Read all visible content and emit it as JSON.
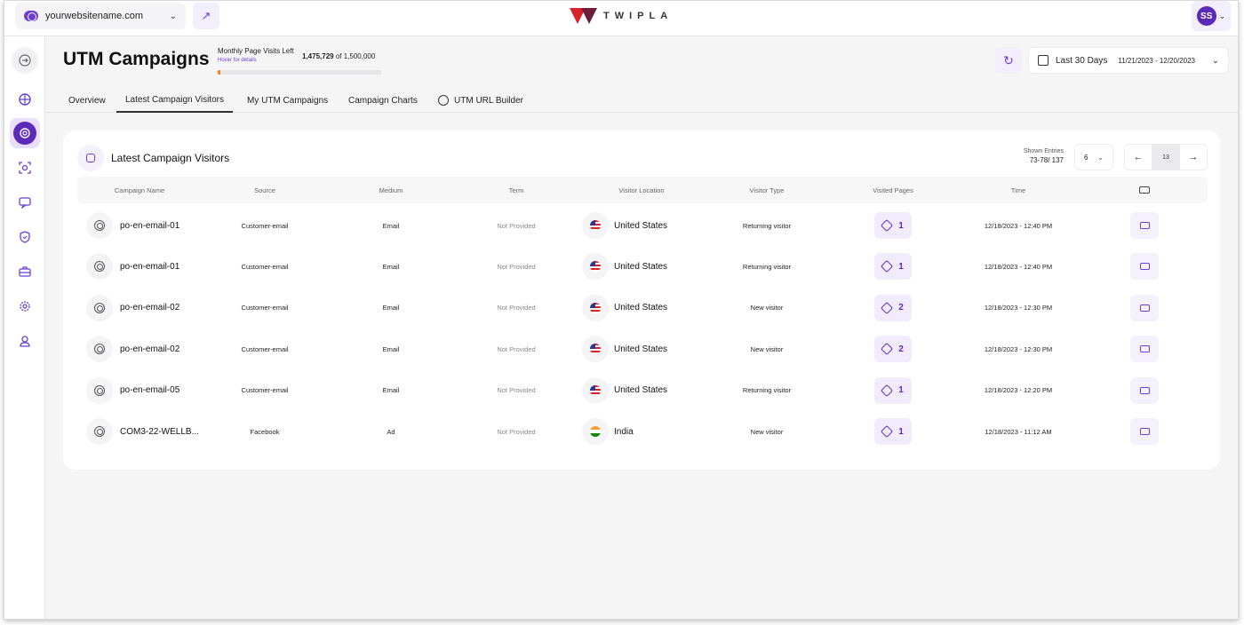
{
  "topbar": {
    "site": "yourwebsitename.com",
    "logo_text": "TWIPLA",
    "user_initials": "SS"
  },
  "header": {
    "title": "UTM Campaigns",
    "visits_label": "Monthly Page Visits Left",
    "visits_hover": "Hover for details",
    "visits_left": "1,475,729",
    "visits_of": "of 1,500,000",
    "visits_fraction_used": 0.016,
    "date_label": "Last 30 Days",
    "date_range": "11/21/2023 - 12/20/2023"
  },
  "tabs": [
    {
      "label": "Overview"
    },
    {
      "label": "Latest Campaign Visitors"
    },
    {
      "label": "My UTM Campaigns"
    },
    {
      "label": "Campaign Charts"
    },
    {
      "label": "UTM URL Builder"
    }
  ],
  "card": {
    "title": "Latest Campaign Visitors",
    "entries_label": "Shown Entries",
    "entries_value": "73-78/ 137",
    "per_page": "6",
    "page": "13"
  },
  "columns": {
    "campaign": "Campaign Name",
    "source": "Source",
    "medium": "Medium",
    "term": "Term",
    "location": "Visitor Location",
    "type": "Visitor Type",
    "pages": "Visited Pages",
    "time": "Time"
  },
  "rows": [
    {
      "campaign": "po-en-email-01",
      "source": "Customer-email",
      "medium": "Email",
      "term": "Not Provided",
      "country": "United States",
      "flag": "us",
      "type": "Returning visitor",
      "pages": "1",
      "time": "12/18/2023 - 12:40 PM"
    },
    {
      "campaign": "po-en-email-01",
      "source": "Customer-email",
      "medium": "Email",
      "term": "Not Provided",
      "country": "United States",
      "flag": "us",
      "type": "Returning visitor",
      "pages": "1",
      "time": "12/18/2023 - 12:40 PM"
    },
    {
      "campaign": "po-en-email-02",
      "source": "Customer-email",
      "medium": "Email",
      "term": "Not Provided",
      "country": "United States",
      "flag": "us",
      "type": "New visitor",
      "pages": "2",
      "time": "12/18/2023 - 12:30 PM"
    },
    {
      "campaign": "po-en-email-02",
      "source": "Customer-email",
      "medium": "Email",
      "term": "Not Provided",
      "country": "United States",
      "flag": "us",
      "type": "New visitor",
      "pages": "2",
      "time": "12/18/2023 - 12:30 PM"
    },
    {
      "campaign": "po-en-email-05",
      "source": "Customer-email",
      "medium": "Email",
      "term": "Not Provided",
      "country": "United States",
      "flag": "us",
      "type": "Returning visitor",
      "pages": "1",
      "time": "12/18/2023 - 12:20 PM"
    },
    {
      "campaign": "COM3-22-WELLB...",
      "source": "Facebook",
      "medium": "Ad",
      "term": "Not Provided",
      "country": "India",
      "flag": "in",
      "type": "New visitor",
      "pages": "1",
      "time": "12/18/2023 - 11:12 AM"
    }
  ]
}
